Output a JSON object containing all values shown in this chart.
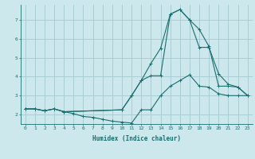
{
  "xlabel": "Humidex (Indice chaleur)",
  "xlim": [
    -0.5,
    23.5
  ],
  "ylim": [
    1.5,
    7.8
  ],
  "bg_color": "#cce8ec",
  "grid_color": "#aacdd4",
  "line_color": "#1a6e6e",
  "line1_x": [
    0,
    1,
    2,
    3,
    4,
    5,
    6,
    7,
    8,
    9,
    10,
    11,
    12,
    13,
    14,
    15,
    16,
    17,
    18,
    19,
    20,
    21,
    22,
    23
  ],
  "line1_y": [
    2.3,
    2.3,
    2.2,
    2.3,
    2.15,
    2.05,
    1.9,
    1.85,
    1.75,
    1.65,
    1.6,
    1.55,
    2.25,
    2.25,
    3.0,
    3.5,
    3.8,
    4.1,
    3.5,
    3.45,
    3.1,
    3.0,
    3.0,
    3.0
  ],
  "line2_x": [
    0,
    1,
    2,
    3,
    4,
    10,
    11,
    12,
    13,
    14,
    15,
    16,
    17,
    18,
    19,
    20,
    21,
    22,
    23
  ],
  "line2_y": [
    2.3,
    2.3,
    2.2,
    2.3,
    2.15,
    2.25,
    3.0,
    3.8,
    4.05,
    4.05,
    7.3,
    7.55,
    7.0,
    5.55,
    5.55,
    4.15,
    3.6,
    3.45,
    3.0
  ],
  "line3_x": [
    0,
    1,
    2,
    3,
    4,
    10,
    11,
    12,
    13,
    14,
    15,
    16,
    17,
    18,
    19,
    20,
    21,
    22,
    23
  ],
  "line3_y": [
    2.3,
    2.3,
    2.2,
    2.3,
    2.15,
    2.25,
    3.0,
    3.8,
    4.7,
    5.5,
    7.3,
    7.55,
    7.0,
    6.5,
    5.6,
    3.5,
    3.5,
    3.45,
    3.0
  ]
}
